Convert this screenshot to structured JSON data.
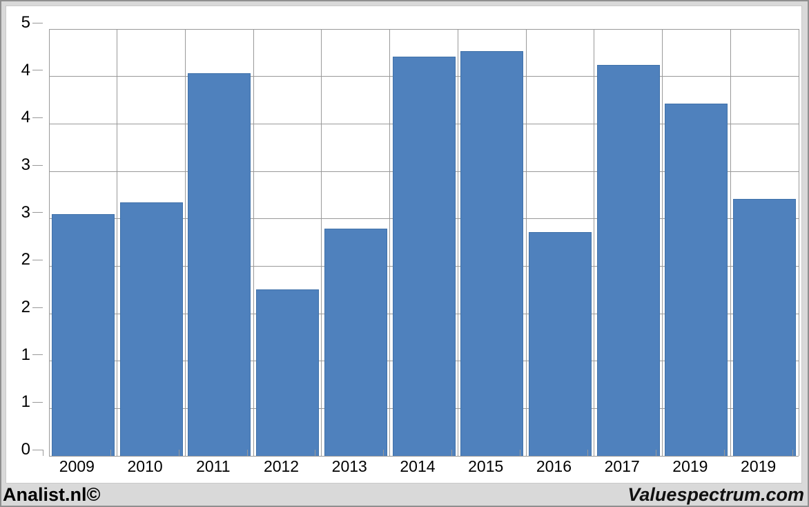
{
  "chart_data": {
    "type": "bar",
    "categories": [
      "2009",
      "2010",
      "2011",
      "2012",
      "2013",
      "2014",
      "2015",
      "2016",
      "2017",
      "2019",
      "2019"
    ],
    "values": [
      2.83,
      2.97,
      4.48,
      1.95,
      2.66,
      4.68,
      4.74,
      2.62,
      4.58,
      4.13,
      3.01
    ],
    "title": "",
    "xlabel": "",
    "ylabel": "",
    "ylim": [
      0,
      5
    ],
    "y_tick_labels": [
      "5",
      "4",
      "4",
      "3",
      "3",
      "2",
      "2",
      "1",
      "1",
      "0"
    ],
    "y_tick_values": [
      5,
      4.444,
      3.889,
      3.333,
      2.778,
      2.222,
      1.667,
      1.111,
      0.556,
      0
    ],
    "grid": true,
    "legend_position": "none",
    "bar_color": "#4f81bd",
    "bar_border_color": "#3f71a9",
    "gridline_color": "#999999",
    "plot_bg": "#ffffff"
  },
  "footer": {
    "left_text": "Analist.nl©",
    "right_text": "Valuespectrum.com"
  },
  "colors": {
    "page_bg": "#d9d9d9",
    "panel_bg": "#ffffff",
    "outer_border": "#8f8f8f",
    "text": "#000000"
  }
}
